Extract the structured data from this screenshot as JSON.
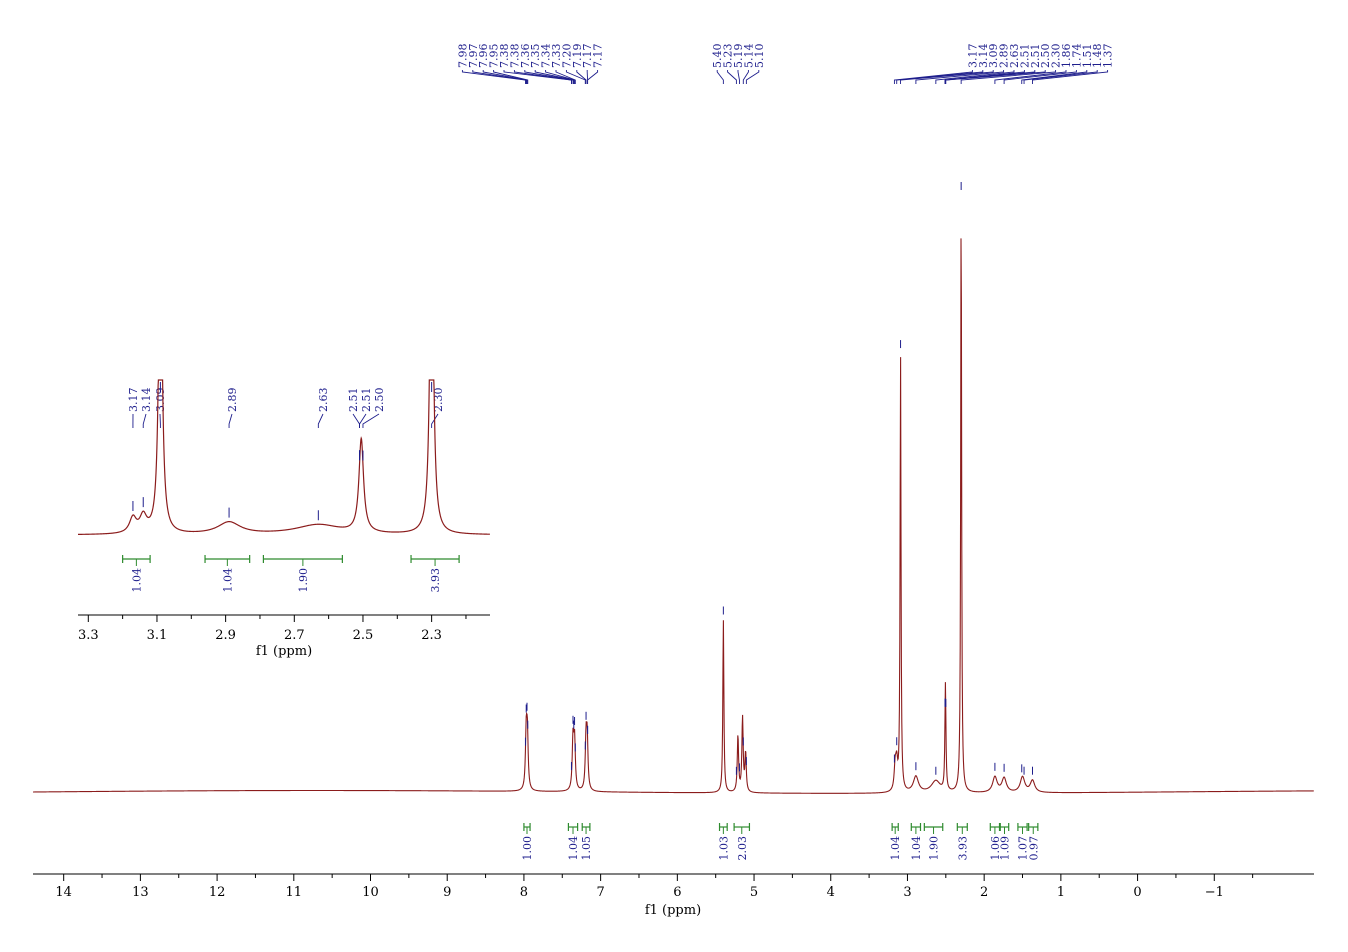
{
  "chart_data": {
    "type": "line",
    "colors": {
      "spectrum": "#8b1c1c",
      "peak_label": "#1e1e8c",
      "integral": "#2e8b2e",
      "axis": "#000000"
    },
    "main": {
      "xlabel": "f1 (ppm)",
      "xlim": [
        14.4,
        -2.3
      ],
      "xticks": [
        "14",
        "13",
        "12",
        "11",
        "10",
        "9",
        "8",
        "7",
        "6",
        "5",
        "4",
        "3",
        "2",
        "1",
        "0",
        "-1"
      ],
      "peak_labels": [
        "7.98",
        "7.97",
        "7.96",
        "7.95",
        "7.38",
        "7.38",
        "7.36",
        "7.35",
        "7.34",
        "7.33",
        "7.20",
        "7.19",
        "7.17",
        "7.17",
        "5.40",
        "5.23",
        "5.19",
        "5.14",
        "5.10",
        "3.17",
        "3.14",
        "3.09",
        "2.89",
        "2.63",
        "2.51",
        "2.51",
        "2.50",
        "2.30",
        "1.86",
        "1.74",
        "1.51",
        "1.48",
        "1.37"
      ],
      "peaks": [
        {
          "ppm": 7.97,
          "height": 0.092,
          "width": 0.012
        },
        {
          "ppm": 7.955,
          "height": 0.088,
          "width": 0.012
        },
        {
          "ppm": 7.36,
          "height": 0.085,
          "width": 0.012
        },
        {
          "ppm": 7.34,
          "height": 0.082,
          "width": 0.012
        },
        {
          "ppm": 7.19,
          "height": 0.082,
          "width": 0.012
        },
        {
          "ppm": 7.175,
          "height": 0.08,
          "width": 0.012
        },
        {
          "ppm": 5.4,
          "height": 0.29,
          "width": 0.008
        },
        {
          "ppm": 5.21,
          "height": 0.095,
          "width": 0.01
        },
        {
          "ppm": 5.15,
          "height": 0.125,
          "width": 0.01
        },
        {
          "ppm": 5.11,
          "height": 0.065,
          "width": 0.01
        },
        {
          "ppm": 3.16,
          "height": 0.04,
          "width": 0.015
        },
        {
          "ppm": 3.14,
          "height": 0.042,
          "width": 0.015
        },
        {
          "ppm": 3.09,
          "height": 0.73,
          "width": 0.007
        },
        {
          "ppm": 2.89,
          "height": 0.027,
          "width": 0.04
        },
        {
          "ppm": 2.63,
          "height": 0.02,
          "width": 0.07
        },
        {
          "ppm": 2.505,
          "height": 0.18,
          "width": 0.008
        },
        {
          "ppm": 2.3,
          "height": 1.0,
          "width": 0.007
        },
        {
          "ppm": 1.86,
          "height": 0.026,
          "width": 0.035
        },
        {
          "ppm": 1.74,
          "height": 0.024,
          "width": 0.035
        },
        {
          "ppm": 1.5,
          "height": 0.026,
          "width": 0.035
        },
        {
          "ppm": 1.37,
          "height": 0.02,
          "width": 0.035
        }
      ],
      "integrals": [
        {
          "start": 8.0,
          "end": 7.92,
          "value": "1.00"
        },
        {
          "start": 7.42,
          "end": 7.3,
          "value": "1.04"
        },
        {
          "start": 7.24,
          "end": 7.14,
          "value": "1.05"
        },
        {
          "start": 5.45,
          "end": 5.35,
          "value": "1.03"
        },
        {
          "start": 5.26,
          "end": 5.06,
          "value": "2.03"
        },
        {
          "start": 3.2,
          "end": 3.12,
          "value": "1.04"
        },
        {
          "start": 2.95,
          "end": 2.83,
          "value": "1.04"
        },
        {
          "start": 2.78,
          "end": 2.54,
          "value": "1.90"
        },
        {
          "start": 2.35,
          "end": 2.22,
          "value": "3.93"
        },
        {
          "start": 1.92,
          "end": 1.8,
          "value": "1.06"
        },
        {
          "start": 1.79,
          "end": 1.68,
          "value": "1.09"
        },
        {
          "start": 1.56,
          "end": 1.44,
          "value": "1.07"
        },
        {
          "start": 1.42,
          "end": 1.3,
          "value": "0.97"
        }
      ]
    },
    "inset": {
      "xlabel": "f1 (ppm)",
      "xlim": [
        3.33,
        2.13
      ],
      "xticks": [
        "3.3",
        "3.1",
        "2.9",
        "2.7",
        "2.5",
        "2.3"
      ],
      "peak_labels": [
        "3.17",
        "3.14",
        "3.09",
        "2.89",
        "2.63",
        "2.51",
        "2.51",
        "2.50",
        "2.30"
      ],
      "integrals": [
        {
          "start": 3.2,
          "end": 3.12,
          "value": "1.04"
        },
        {
          "start": 2.96,
          "end": 2.83,
          "value": "1.04"
        },
        {
          "start": 2.79,
          "end": 2.56,
          "value": "1.90"
        },
        {
          "start": 2.36,
          "end": 2.22,
          "value": "3.93"
        }
      ]
    }
  }
}
